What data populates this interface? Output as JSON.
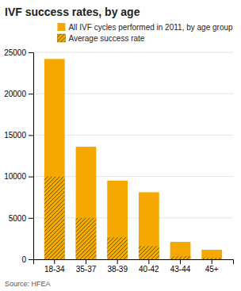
{
  "chart_data": {
    "type": "bar",
    "title": "IVF success rates, by age",
    "categories": [
      "18-34",
      "35-37",
      "38-39",
      "40-42",
      "43-44",
      "45+"
    ],
    "series": [
      {
        "name": "All IVF cycles performed in 2011, by age group",
        "color": "#F5A800",
        "values": [
          24200,
          13600,
          9500,
          8100,
          2100,
          1150
        ]
      },
      {
        "name": "Average success rate",
        "color": "#6B5E00",
        "values": [
          10000,
          5000,
          2650,
          1600,
          350,
          200
        ]
      }
    ],
    "stacked": false,
    "ylim": [
      0,
      25000
    ],
    "yticks": [
      0,
      5000,
      10000,
      15000,
      20000,
      25000
    ],
    "grid": true,
    "legend": "upper right",
    "annotations": [
      "Source: HFEA"
    ]
  }
}
